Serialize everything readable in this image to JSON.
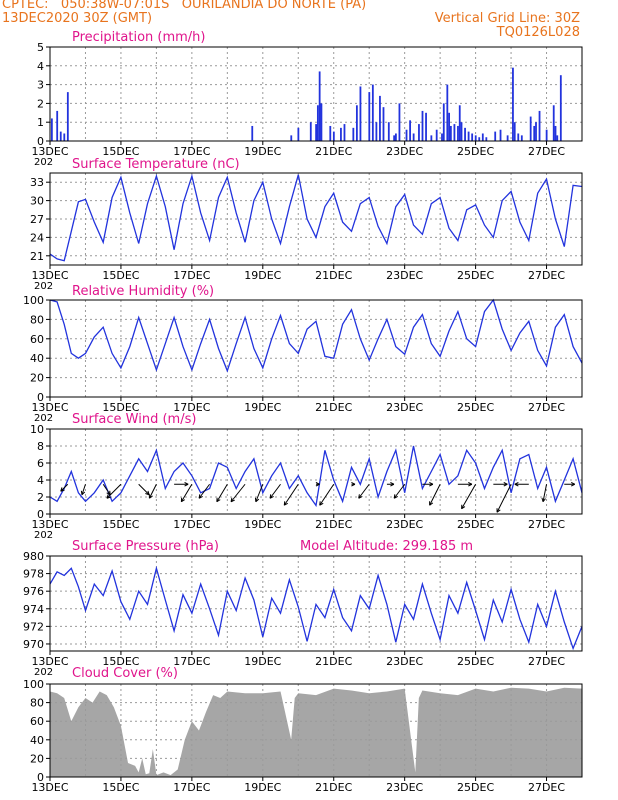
{
  "header": {
    "line1_left": "CPTEC:   050:38W-07:01S   OURILANDIA DO NORTE (PA)",
    "line2_left": "13DEC2020 30Z (GMT)",
    "line2_right": "Vertical Grid Line: 30Z",
    "line3_right": "TQ0126L028"
  },
  "colors": {
    "header": "#e8741e",
    "title": "#e0158c",
    "line": "#2233dd",
    "cloud": "#a6a6a6",
    "grid": "#9a9a9a"
  },
  "x_axis": {
    "labels": [
      "13DEC",
      "15DEC",
      "17DEC",
      "19DEC",
      "21DEC",
      "23DEC",
      "25DEC",
      "27DEC"
    ],
    "label_positions_days": [
      0,
      2,
      4,
      6,
      8,
      10,
      12,
      14
    ],
    "range_days": [
      0,
      15
    ],
    "grid_every_days": 1,
    "cutoff_label": "202"
  },
  "chart_data": [
    {
      "type": "bar",
      "title": "Precipitation (mm/h)",
      "ylim": [
        0,
        5
      ],
      "yticks": [
        0,
        1,
        2,
        3,
        4,
        5
      ],
      "x": [
        0.05,
        0.2,
        0.3,
        0.4,
        0.5,
        5.7,
        6.8,
        7.0,
        7.35,
        7.5,
        7.55,
        7.6,
        7.65,
        7.9,
        8.0,
        8.2,
        8.3,
        8.55,
        8.65,
        8.75,
        9.0,
        9.1,
        9.2,
        9.3,
        9.4,
        9.55,
        9.7,
        9.75,
        9.85,
        10.05,
        10.15,
        10.25,
        10.4,
        10.5,
        10.6,
        10.75,
        10.9,
        11.05,
        11.1,
        11.2,
        11.25,
        11.3,
        11.4,
        11.5,
        11.55,
        11.6,
        11.7,
        11.8,
        11.9,
        12.0,
        12.1,
        12.2,
        12.3,
        12.55,
        12.7,
        12.9,
        13.05,
        13.1,
        13.2,
        13.3,
        13.55,
        13.65,
        13.7,
        13.8,
        14.0,
        14.2,
        14.25,
        14.3,
        14.4
      ],
      "values": [
        1.2,
        1.6,
        0.5,
        0.4,
        2.6,
        0.8,
        0.3,
        0.7,
        1.0,
        0.9,
        1.9,
        3.7,
        2.0,
        0.8,
        0.5,
        0.7,
        0.9,
        0.7,
        1.9,
        2.9,
        2.6,
        3.0,
        1.0,
        2.4,
        1.8,
        1.0,
        0.3,
        0.4,
        2.0,
        0.6,
        1.1,
        0.4,
        0.9,
        1.6,
        1.5,
        0.3,
        0.6,
        0.4,
        2.0,
        3.0,
        1.5,
        0.8,
        0.9,
        0.8,
        1.9,
        1.0,
        0.7,
        0.5,
        0.4,
        0.3,
        0.2,
        0.4,
        0.2,
        0.5,
        0.6,
        0.3,
        3.9,
        1.0,
        0.4,
        0.3,
        1.3,
        0.8,
        1.0,
        1.6,
        0.6,
        1.9,
        0.8,
        0.3,
        3.5
      ]
    },
    {
      "type": "line",
      "title": "Surface Temperature (nC)",
      "ylim": [
        19.5,
        34.5
      ],
      "yticks": [
        21,
        24,
        27,
        30,
        33
      ],
      "x": [
        0,
        0.2,
        0.4,
        0.6,
        0.8,
        1.0,
        1.25,
        1.5,
        1.75,
        2.0,
        2.25,
        2.5,
        2.75,
        3.0,
        3.25,
        3.5,
        3.75,
        4.0,
        4.25,
        4.5,
        4.75,
        5.0,
        5.25,
        5.5,
        5.75,
        6.0,
        6.25,
        6.5,
        6.75,
        7.0,
        7.25,
        7.5,
        7.75,
        8.0,
        8.25,
        8.5,
        8.75,
        9.0,
        9.25,
        9.5,
        9.75,
        10.0,
        10.25,
        10.5,
        10.75,
        11.0,
        11.25,
        11.5,
        11.75,
        12.0,
        12.25,
        12.5,
        12.75,
        13.0,
        13.25,
        13.5,
        13.75,
        14.0,
        14.25,
        14.5,
        14.75,
        15.0
      ],
      "values": [
        21.3,
        20.5,
        20.2,
        25.0,
        29.8,
        30.2,
        26.5,
        23.2,
        30.5,
        33.8,
        28.0,
        23.0,
        29.5,
        34.0,
        29.0,
        22.0,
        29.5,
        34.0,
        28.0,
        23.5,
        30.5,
        33.8,
        28.0,
        23.2,
        30.0,
        33.0,
        27.0,
        23.0,
        29.0,
        34.2,
        27.0,
        24.0,
        29.0,
        31.2,
        26.5,
        25.0,
        29.5,
        30.5,
        25.8,
        23.0,
        29.0,
        31.0,
        26.0,
        24.5,
        29.5,
        30.5,
        25.5,
        23.5,
        28.5,
        29.3,
        26.0,
        24.0,
        30.0,
        31.5,
        26.5,
        23.5,
        31.2,
        33.5,
        27.0,
        22.5,
        32.5,
        32.3
      ]
    },
    {
      "type": "line",
      "title": "Relative Humidity (%)",
      "ylim": [
        0,
        100
      ],
      "yticks": [
        0,
        20,
        40,
        60,
        80,
        100
      ],
      "x": [
        0,
        0.2,
        0.4,
        0.6,
        0.8,
        1.0,
        1.25,
        1.5,
        1.75,
        2.0,
        2.25,
        2.5,
        2.75,
        3.0,
        3.25,
        3.5,
        3.75,
        4.0,
        4.25,
        4.5,
        4.75,
        5.0,
        5.25,
        5.5,
        5.75,
        6.0,
        6.25,
        6.5,
        6.75,
        7.0,
        7.25,
        7.5,
        7.75,
        8.0,
        8.25,
        8.5,
        8.75,
        9.0,
        9.25,
        9.5,
        9.75,
        10.0,
        10.25,
        10.5,
        10.75,
        11.0,
        11.25,
        11.5,
        11.75,
        12.0,
        12.25,
        12.5,
        12.75,
        13.0,
        13.25,
        13.5,
        13.75,
        14.0,
        14.25,
        14.5,
        14.75,
        15.0
      ],
      "values": [
        100,
        98,
        75,
        45,
        40,
        45,
        62,
        72,
        45,
        30,
        52,
        82,
        55,
        28,
        55,
        82,
        52,
        28,
        55,
        80,
        50,
        27,
        55,
        82,
        50,
        30,
        60,
        84,
        55,
        45,
        70,
        78,
        42,
        40,
        75,
        90,
        60,
        38,
        60,
        80,
        52,
        44,
        72,
        85,
        55,
        42,
        68,
        88,
        60,
        52,
        88,
        100,
        70,
        48,
        66,
        78,
        48,
        32,
        72,
        85,
        52,
        35
      ]
    },
    {
      "type": "line",
      "title": "Surface Wind (m/s)",
      "ylim": [
        0,
        10
      ],
      "yticks": [
        0,
        2,
        4,
        6,
        8,
        10
      ],
      "x": [
        0,
        0.2,
        0.4,
        0.6,
        0.8,
        1.0,
        1.25,
        1.5,
        1.75,
        2.0,
        2.25,
        2.5,
        2.75,
        3.0,
        3.25,
        3.5,
        3.75,
        4.0,
        4.25,
        4.5,
        4.75,
        5.0,
        5.25,
        5.5,
        5.75,
        6.0,
        6.25,
        6.5,
        6.75,
        7.0,
        7.25,
        7.5,
        7.75,
        8.0,
        8.25,
        8.5,
        8.75,
        9.0,
        9.25,
        9.5,
        9.75,
        10.0,
        10.25,
        10.5,
        10.75,
        11.0,
        11.25,
        11.5,
        11.75,
        12.0,
        12.25,
        12.5,
        12.75,
        13.0,
        13.25,
        13.5,
        13.75,
        14.0,
        14.25,
        14.5,
        14.75,
        15.0
      ],
      "values": [
        2.0,
        1.5,
        3.0,
        5.0,
        2.5,
        1.5,
        2.5,
        4.0,
        1.5,
        2.5,
        4.5,
        6.5,
        5.0,
        7.5,
        3.0,
        5.0,
        6.0,
        4.5,
        2.5,
        3.0,
        6.0,
        5.5,
        3.0,
        5.0,
        6.5,
        2.5,
        4.5,
        6.0,
        3.0,
        4.5,
        2.5,
        1.0,
        7.5,
        4.0,
        1.5,
        5.5,
        3.5,
        6.5,
        2.0,
        5.0,
        7.5,
        2.5,
        8.0,
        3.0,
        5.0,
        7.0,
        3.5,
        4.5,
        7.5,
        6.0,
        3.0,
        5.5,
        7.5,
        2.5,
        6.5,
        7.0,
        3.0,
        5.5,
        1.5,
        4.0,
        6.5,
        2.5
      ],
      "vector_x": [
        0.5,
        1.0,
        1.5,
        2.0,
        2.5,
        3.0,
        3.5,
        4.0,
        4.5,
        5.0,
        5.5,
        6.0,
        6.5,
        7.0,
        7.5,
        8.0,
        8.5,
        9.0,
        9.5,
        10.0,
        10.5,
        11.0,
        11.5,
        12.0,
        12.5,
        13.0,
        13.5,
        14.0,
        14.5
      ],
      "vector_u": [
        -1.0,
        -0.5,
        1.0,
        -2.0,
        1.5,
        -1.0,
        2.0,
        -1.5,
        -1.5,
        -1.5,
        -2.0,
        -1.0,
        -1.5,
        -2.0,
        0.5,
        -2.0,
        0.5,
        -1.5,
        1.0,
        -1.5,
        1.5,
        -1.5,
        2.0,
        -2.0,
        2.0,
        -2.0,
        -2.0,
        -0.5,
        1.5
      ],
      "vector_v": [
        1.0,
        1.5,
        1.5,
        2.0,
        1.5,
        2.0,
        0.0,
        2.5,
        2.0,
        2.5,
        2.5,
        2.5,
        2.0,
        3.0,
        0.0,
        3.0,
        0.0,
        2.0,
        0.0,
        2.0,
        0.0,
        3.0,
        0.0,
        3.5,
        0.0,
        4.0,
        0.0,
        2.5,
        0.0
      ]
    },
    {
      "type": "line",
      "title": "Surface Pressure (hPa)",
      "annotation": "Model Altitude: 299.185 m",
      "ylim": [
        969.2,
        980
      ],
      "yticks": [
        970,
        972,
        974,
        976,
        978,
        980
      ],
      "x": [
        0,
        0.2,
        0.4,
        0.6,
        0.8,
        1.0,
        1.25,
        1.5,
        1.75,
        2.0,
        2.25,
        2.5,
        2.75,
        3.0,
        3.25,
        3.5,
        3.75,
        4.0,
        4.25,
        4.5,
        4.75,
        5.0,
        5.25,
        5.5,
        5.75,
        6.0,
        6.25,
        6.5,
        6.75,
        7.0,
        7.25,
        7.5,
        7.75,
        8.0,
        8.25,
        8.5,
        8.75,
        9.0,
        9.25,
        9.5,
        9.75,
        10.0,
        10.25,
        10.5,
        10.75,
        11.0,
        11.25,
        11.5,
        11.75,
        12.0,
        12.25,
        12.5,
        12.75,
        13.0,
        13.25,
        13.5,
        13.75,
        14.0,
        14.25,
        14.5,
        14.75,
        15.0
      ],
      "values": [
        976.8,
        978.2,
        977.8,
        978.6,
        976.5,
        973.8,
        976.8,
        975.5,
        978.3,
        974.8,
        972.8,
        976.0,
        974.5,
        978.6,
        975.0,
        971.5,
        975.6,
        973.5,
        976.8,
        974.0,
        971.0,
        976.0,
        973.8,
        977.5,
        975.0,
        970.8,
        975.2,
        973.5,
        977.3,
        974.2,
        970.3,
        974.5,
        973.0,
        976.2,
        973.0,
        971.5,
        975.5,
        974.0,
        977.8,
        974.5,
        970.2,
        974.5,
        972.8,
        976.8,
        973.5,
        970.5,
        975.5,
        973.5,
        977.0,
        973.8,
        970.5,
        975.0,
        972.5,
        976.2,
        972.8,
        970.2,
        974.5,
        972.0,
        976.0,
        972.5,
        969.5,
        972.0
      ]
    },
    {
      "type": "area",
      "title": "Cloud Cover (%)",
      "ylim": [
        0,
        100
      ],
      "yticks": [
        0,
        20,
        40,
        60,
        80,
        100
      ],
      "x": [
        0,
        0.2,
        0.4,
        0.6,
        0.8,
        1.0,
        1.2,
        1.4,
        1.6,
        1.8,
        2.0,
        2.2,
        2.4,
        2.5,
        2.6,
        2.7,
        2.8,
        2.9,
        3.0,
        3.2,
        3.4,
        3.6,
        3.8,
        4.0,
        4.2,
        4.4,
        4.6,
        4.8,
        5.0,
        5.5,
        6.0,
        6.5,
        6.8,
        6.9,
        7.0,
        7.5,
        8.0,
        8.5,
        9.0,
        9.5,
        10.0,
        10.3,
        10.4,
        10.5,
        11.0,
        11.5,
        12.0,
        12.5,
        13.0,
        13.5,
        14.0,
        14.5,
        15.0
      ],
      "values": [
        92,
        90,
        85,
        60,
        75,
        85,
        80,
        92,
        88,
        75,
        55,
        15,
        12,
        5,
        20,
        3,
        4,
        30,
        2,
        5,
        2,
        8,
        40,
        60,
        50,
        70,
        88,
        85,
        92,
        90,
        90,
        92,
        40,
        85,
        90,
        88,
        95,
        93,
        90,
        92,
        95,
        5,
        85,
        93,
        90,
        88,
        95,
        92,
        96,
        95,
        92,
        96,
        95
      ]
    }
  ]
}
